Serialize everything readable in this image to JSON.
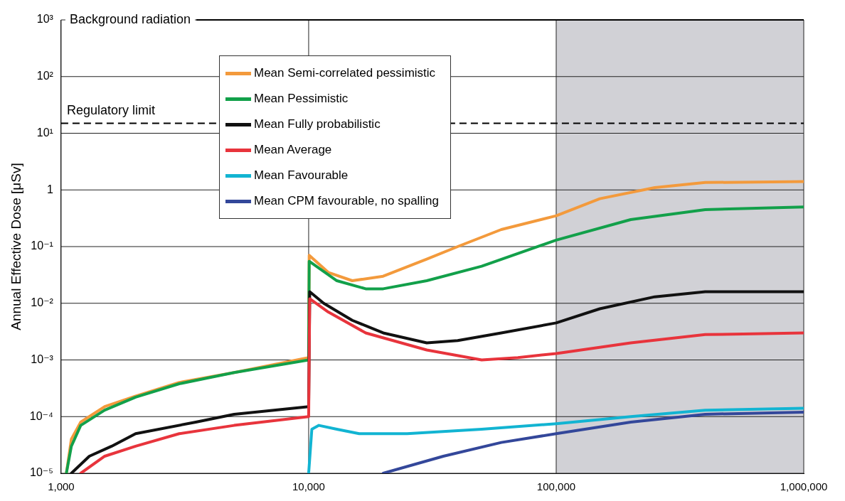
{
  "chart_data": {
    "type": "line",
    "ylabel": "Annual Effective Dose [μSv]",
    "log": "xy",
    "xlim": [
      1000,
      1000000
    ],
    "ylim": [
      1e-05,
      1000
    ],
    "xticks": [
      {
        "value": 1000,
        "label": "1,000"
      },
      {
        "value": 10000,
        "label": "10,000"
      },
      {
        "value": 100000,
        "label": "100,000"
      },
      {
        "value": 1000000,
        "label": "1,000,000"
      }
    ],
    "yticks": [
      {
        "value": 1e-05,
        "label": "10⁻⁵"
      },
      {
        "value": 0.0001,
        "label": "10⁻⁴"
      },
      {
        "value": 0.001,
        "label": "10⁻³"
      },
      {
        "value": 0.01,
        "label": "10⁻²"
      },
      {
        "value": 0.1,
        "label": "10⁻¹"
      },
      {
        "value": 1,
        "label": "1"
      },
      {
        "value": 10,
        "label": "10¹"
      },
      {
        "value": 100,
        "label": "10²"
      },
      {
        "value": 1000,
        "label": "10³"
      }
    ],
    "grid": true,
    "legend": "top left",
    "marker": "none",
    "line_style": "solid",
    "bands": [
      {
        "axis": "x",
        "from": 100000,
        "to": 1000000,
        "color": "#d1d1d6"
      }
    ],
    "ref_lines": [
      {
        "axis": "y",
        "value": 15,
        "label": "Regulatory limit",
        "line_style": "dashed",
        "color": "#000000"
      },
      {
        "axis": "y",
        "value": 1000,
        "label": "Background radiation",
        "line_style": "solid",
        "color": "#000000"
      }
    ],
    "series": [
      {
        "name": "Mean Semi-correlated pessimistic",
        "type": "line",
        "color": "#f39a3c",
        "x": [
          1050,
          1100,
          1200,
          1500,
          2000,
          3000,
          5000,
          10000,
          10050,
          12000,
          15000,
          20000,
          30000,
          40000,
          60000,
          100000,
          150000,
          250000,
          400000,
          1000000
        ],
        "values": [
          1e-05,
          4e-05,
          8e-05,
          0.00015,
          0.00023,
          0.0004,
          0.0006,
          0.0011,
          0.07,
          0.035,
          0.025,
          0.03,
          0.06,
          0.1,
          0.2,
          0.35,
          0.7,
          1.1,
          1.35,
          1.4
        ]
      },
      {
        "name": "Mean Pessimistic",
        "type": "line",
        "color": "#12a04a",
        "x": [
          1050,
          1100,
          1200,
          1500,
          2000,
          3000,
          5000,
          10000,
          10050,
          13000,
          17000,
          20000,
          30000,
          50000,
          100000,
          200000,
          400000,
          1000000
        ],
        "values": [
          1e-05,
          3e-05,
          7e-05,
          0.00013,
          0.00022,
          0.00038,
          0.0006,
          0.001,
          0.055,
          0.025,
          0.018,
          0.018,
          0.025,
          0.045,
          0.13,
          0.3,
          0.45,
          0.5
        ]
      },
      {
        "name": "Mean Fully probabilistic",
        "type": "line",
        "color": "#111111",
        "x": [
          1100,
          1300,
          1600,
          2000,
          3500,
          5000,
          10000,
          10100,
          11500,
          15000,
          20000,
          30000,
          40000,
          60000,
          100000,
          150000,
          250000,
          400000,
          1000000
        ],
        "values": [
          1e-05,
          2e-05,
          3e-05,
          5e-05,
          8e-05,
          0.00011,
          0.00015,
          0.016,
          0.01,
          0.005,
          0.003,
          0.002,
          0.0022,
          0.003,
          0.0045,
          0.008,
          0.013,
          0.016,
          0.016
        ]
      },
      {
        "name": "Mean Average",
        "type": "line",
        "color": "#e8343c",
        "x": [
          1200,
          1500,
          2000,
          3000,
          5000,
          10000,
          10100,
          12000,
          17000,
          30000,
          50000,
          70000,
          100000,
          200000,
          400000,
          1000000
        ],
        "values": [
          1e-05,
          2e-05,
          3e-05,
          5e-05,
          7e-05,
          0.0001,
          0.012,
          0.007,
          0.003,
          0.0015,
          0.001,
          0.0011,
          0.0013,
          0.002,
          0.0028,
          0.003
        ]
      },
      {
        "name": "Mean Favourable",
        "type": "line",
        "color": "#12b4d2",
        "x": [
          10000,
          10300,
          11000,
          13000,
          16000,
          25000,
          50000,
          100000,
          200000,
          400000,
          1000000
        ],
        "values": [
          1e-05,
          6e-05,
          7e-05,
          6e-05,
          5e-05,
          5e-05,
          6e-05,
          7.5e-05,
          0.0001,
          0.00013,
          0.00014
        ]
      },
      {
        "name": "Mean CPM favourable, no spalling",
        "type": "line",
        "color": "#33479a",
        "x": [
          20000,
          35000,
          60000,
          100000,
          200000,
          400000,
          1000000
        ],
        "values": [
          1e-05,
          2e-05,
          3.5e-05,
          5e-05,
          8e-05,
          0.00011,
          0.00012
        ]
      }
    ]
  }
}
